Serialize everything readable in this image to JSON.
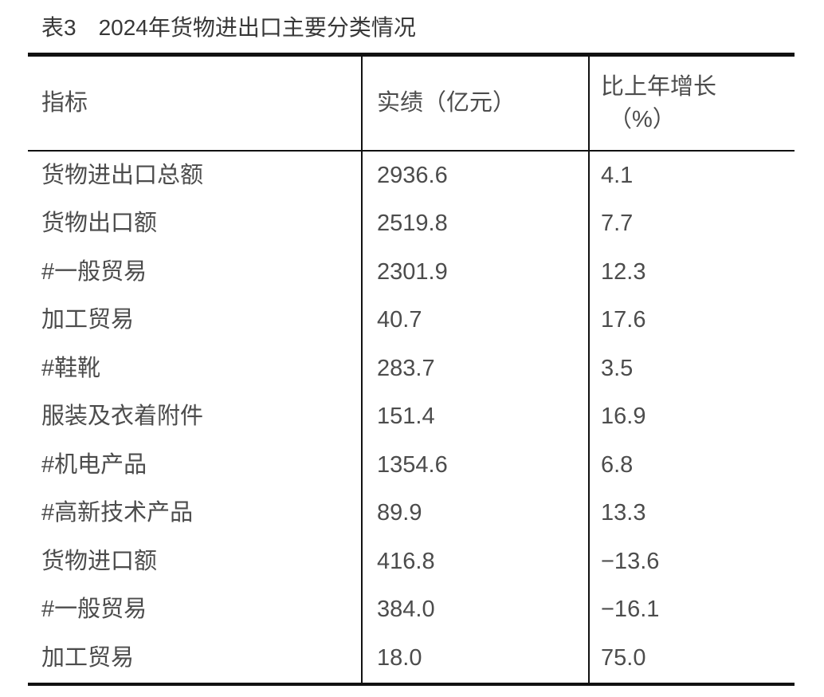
{
  "title": "表3　2024年货物进出口主要分类情况",
  "table": {
    "headers": {
      "indicator": "指标",
      "value": "实绩（亿元）",
      "growth_line1": "比上年增长",
      "growth_line2": "（%）"
    },
    "rows": [
      {
        "indicator": "货物进出口总额",
        "value": "2936.6",
        "growth": "4.1"
      },
      {
        "indicator": "货物出口额",
        "value": "2519.8",
        "growth": "7.7"
      },
      {
        "indicator": "#一般贸易",
        "value": "2301.9",
        "growth": "12.3"
      },
      {
        "indicator": "加工贸易",
        "value": "40.7",
        "growth": "17.6"
      },
      {
        "indicator": "#鞋靴",
        "value": "283.7",
        "growth": "3.5"
      },
      {
        "indicator": "服装及衣着附件",
        "value": "151.4",
        "growth": "16.9"
      },
      {
        "indicator": "#机电产品",
        "value": "1354.6",
        "growth": "6.8"
      },
      {
        "indicator": "#高新技术产品",
        "value": "89.9",
        "growth": "13.3"
      },
      {
        "indicator": "货物进口额",
        "value": "416.8",
        "growth": "−13.6"
      },
      {
        "indicator": "#一般贸易",
        "value": "384.0",
        "growth": "−16.1"
      },
      {
        "indicator": "加工贸易",
        "value": "18.0",
        "growth": "75.0"
      }
    ]
  },
  "colors": {
    "text": "#4c4c4c",
    "title_text": "#383838",
    "border": "#111111",
    "background": "#ffffff"
  }
}
